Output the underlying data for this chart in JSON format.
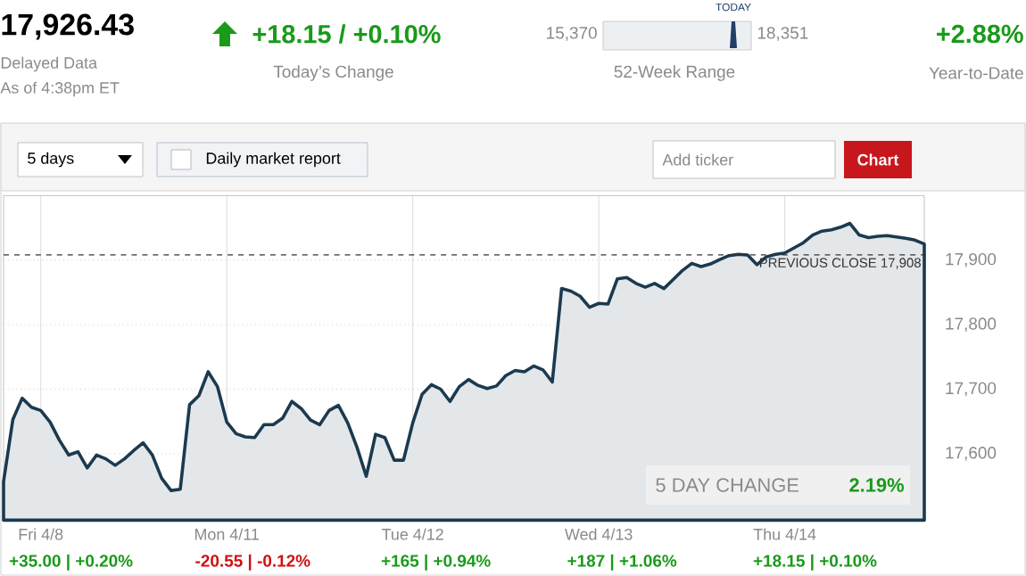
{
  "chart_data": {
    "type": "area",
    "annotations": [
      "17,926.43",
      "Delayed Data",
      "As of 4:38pm ET",
      "+18.15 / +0.10%",
      "Today’s Change",
      "15,370",
      "TODAY",
      "18,351",
      "52-Week Range",
      "+2.88%",
      "Year-to-Date",
      "5 days",
      "Daily market report",
      "Add ticker",
      "Chart",
      "5 DAY CHANGE",
      "2.19%",
      "+35.00 | +0.20%",
      "-20.55 | -0.12%",
      "+165 | +0.94%",
      "+187 | +1.06%",
      "+18.15 | +0.10%"
    ],
    "categories": [
      null,
      null,
      null,
      null,
      "Fri 4/8",
      null,
      null,
      null,
      null,
      null,
      null,
      null,
      null,
      null,
      null,
      null,
      null,
      null,
      null,
      null,
      null,
      null,
      null,
      null,
      "Mon 4/11",
      null,
      null,
      null,
      null,
      null,
      null,
      null,
      null,
      null,
      null,
      null,
      null,
      null,
      null,
      null,
      null,
      null,
      null,
      null,
      "Tue 4/12",
      null,
      null,
      null,
      null,
      null,
      null,
      null,
      null,
      null,
      null,
      null,
      null,
      null,
      null,
      null,
      null,
      null,
      null,
      null,
      "Wed 4/13",
      null,
      null,
      null,
      null,
      null,
      null,
      null,
      null,
      null,
      null,
      null,
      null,
      null,
      null,
      null,
      null,
      null,
      null,
      null,
      "Thu 4/14",
      null,
      null,
      null,
      null,
      null,
      null,
      null,
      null,
      null,
      null,
      null,
      null,
      null,
      null,
      null
    ],
    "series": [
      {
        "color": "#1b3a4f",
        "values": [
          17557,
          17653,
          17686,
          17672,
          17667,
          17649,
          17621,
          17598,
          17603,
          17578,
          17598,
          17592,
          17582,
          17592,
          17605,
          17617,
          17598,
          17562,
          17543,
          17545,
          17676,
          17690,
          17727,
          17704,
          17649,
          17631,
          17626,
          17625,
          17645,
          17645,
          17655,
          17681,
          17670,
          17652,
          17645,
          17667,
          17675,
          17648,
          17610,
          17565,
          17630,
          17625,
          17590,
          17590,
          17648,
          17692,
          17707,
          17700,
          17681,
          17704,
          17715,
          17706,
          17701,
          17705,
          17721,
          17729,
          17727,
          17736,
          17730,
          17711,
          17856,
          17852,
          17844,
          17827,
          17833,
          17832,
          17871,
          17873,
          17864,
          17858,
          17864,
          17856,
          17870,
          17884,
          17895,
          17890,
          17894,
          17901,
          17907,
          17909,
          17908,
          17893,
          17905,
          17909,
          17911,
          17919,
          17927,
          17939,
          17945,
          17947,
          17951,
          17957,
          17939,
          17935,
          17937,
          17938,
          17936,
          17934,
          17931,
          17925
        ]
      }
    ],
    "ylim": [
      17497,
      18000
    ],
    "yticks": [
      {
        "value": 17600,
        "label": "17,600"
      },
      {
        "value": 17700,
        "label": "17,700"
      },
      {
        "value": 17800,
        "label": "17,800"
      },
      {
        "value": 17900,
        "label": "17,900"
      }
    ],
    "ref_lines": [
      {
        "axis": "y",
        "value": 17908,
        "label": "PREVIOUS CLOSE 17,908",
        "line_style": "dashed",
        "color": "#333333"
      }
    ],
    "grid": true
  }
}
